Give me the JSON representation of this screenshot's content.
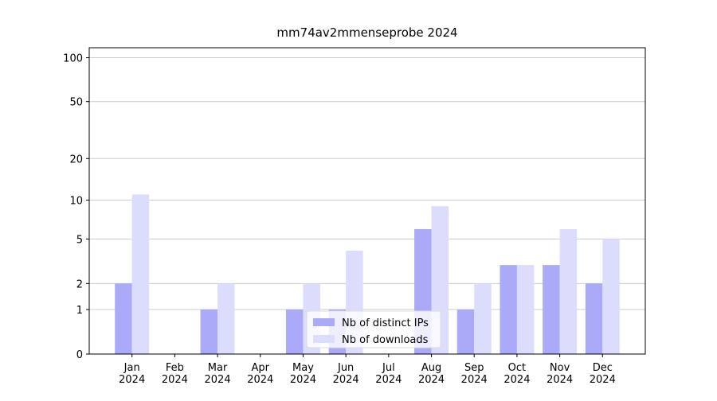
{
  "chart_data": {
    "type": "bar",
    "title": "mm74av2mmenseprobe 2024",
    "categories": [
      "Jan\n2024",
      "Feb\n2024",
      "Mar\n2024",
      "Apr\n2024",
      "May\n2024",
      "Jun\n2024",
      "Jul\n2024",
      "Aug\n2024",
      "Sep\n2024",
      "Oct\n2024",
      "Nov\n2024",
      "Dec\n2024"
    ],
    "series": [
      {
        "name": "Nb of distinct IPs",
        "color": "#aaaaf8",
        "values": [
          2,
          0,
          1,
          0,
          1,
          1,
          0,
          6,
          1,
          3,
          3,
          2
        ]
      },
      {
        "name": "Nb of downloads",
        "color": "#dcdcfc",
        "values": [
          11,
          0,
          2,
          0,
          2,
          4,
          0,
          9,
          2,
          3,
          6,
          5
        ]
      }
    ],
    "yscale": "log1p",
    "ylim": [
      0,
      117
    ],
    "yticks": [
      0,
      1,
      2,
      5,
      10,
      20,
      50,
      100
    ],
    "grid": true,
    "legend": "lower center"
  }
}
